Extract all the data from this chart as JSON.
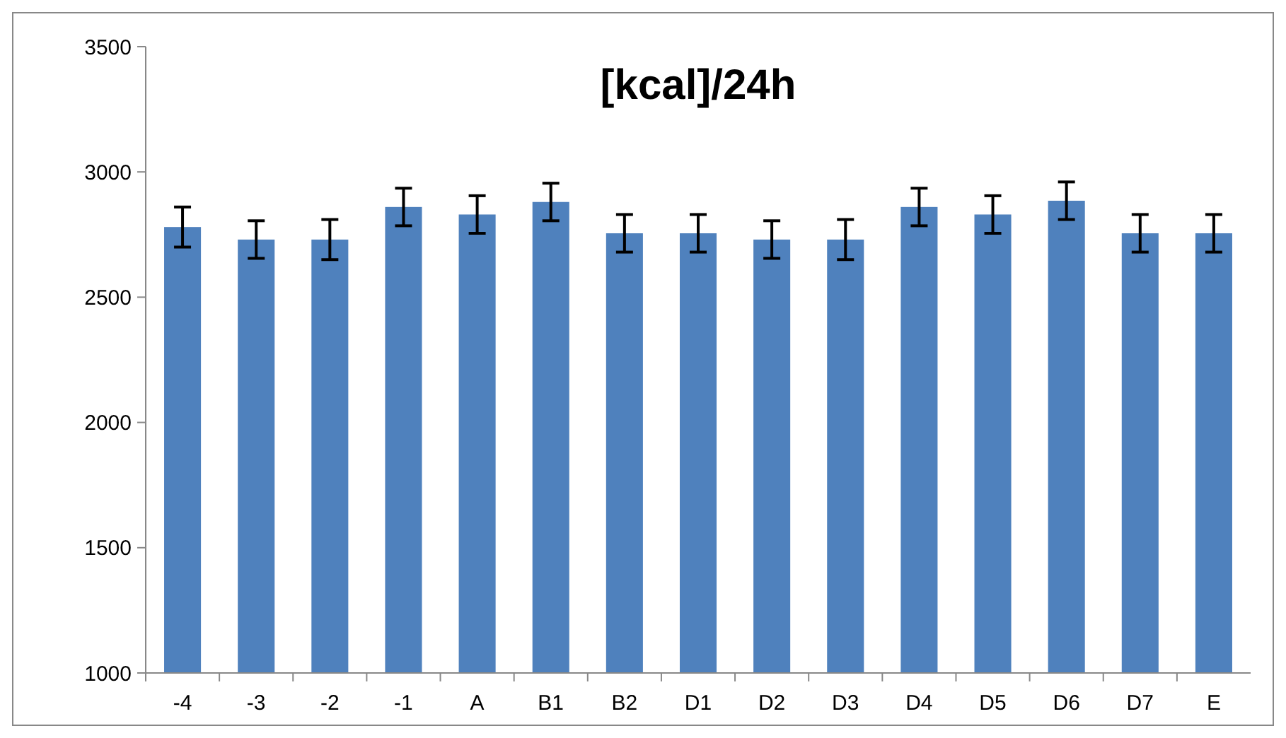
{
  "chart_data": {
    "type": "bar",
    "title": "[kcal]/24h",
    "categories": [
      "-4",
      "-3",
      "-2",
      "-1",
      "A",
      "B1",
      "B2",
      "D1",
      "D2",
      "D3",
      "D4",
      "D5",
      "D6",
      "D7",
      "E"
    ],
    "values": [
      2780,
      2730,
      2730,
      2860,
      2830,
      2880,
      2755,
      2755,
      2730,
      2730,
      2860,
      2830,
      2885,
      2755,
      2755
    ],
    "errors": [
      80,
      75,
      80,
      75,
      75,
      75,
      75,
      75,
      75,
      80,
      75,
      75,
      75,
      75,
      75
    ],
    "color": "#4f81bd",
    "ylim": [
      1000,
      3500
    ],
    "yticks": [
      1000,
      1500,
      2000,
      2500,
      3000,
      3500
    ],
    "grid": false
  }
}
